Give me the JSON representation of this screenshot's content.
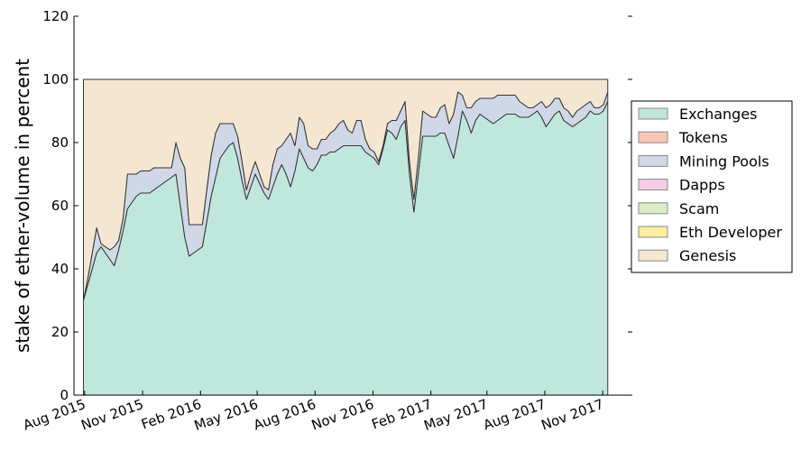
{
  "chart_data": {
    "type": "area",
    "stacked": true,
    "title": "",
    "xlabel": "",
    "ylabel": "stake of ether-volume in percent",
    "ylim": [
      0,
      120
    ],
    "yticks": [
      0,
      20,
      40,
      60,
      80,
      100,
      120
    ],
    "xlim": [
      "2015-07-15",
      "2017-12-18"
    ],
    "xticks": [
      "2015-08-01",
      "2015-11-01",
      "2016-02-01",
      "2016-05-01",
      "2016-08-01",
      "2016-11-01",
      "2017-02-01",
      "2017-05-01",
      "2017-08-01",
      "2017-11-01"
    ],
    "xtick_labels": [
      "Aug 2015",
      "Nov 2015",
      "Feb 2016",
      "May 2016",
      "Aug 2016",
      "Nov 2016",
      "Feb 2017",
      "May 2017",
      "Aug 2017",
      "Nov 2017"
    ],
    "grid": false,
    "legend_position": "right",
    "x": [
      "2015-07-30",
      "2015-08-06",
      "2015-08-13",
      "2015-08-20",
      "2015-08-27",
      "2015-09-03",
      "2015-09-10",
      "2015-09-17",
      "2015-09-24",
      "2015-10-01",
      "2015-10-08",
      "2015-10-15",
      "2015-10-22",
      "2015-10-29",
      "2015-11-05",
      "2015-11-12",
      "2015-11-19",
      "2015-11-26",
      "2015-12-03",
      "2015-12-10",
      "2015-12-17",
      "2015-12-24",
      "2015-12-31",
      "2016-01-07",
      "2016-01-14",
      "2016-01-21",
      "2016-01-28",
      "2016-02-04",
      "2016-02-11",
      "2016-02-18",
      "2016-02-25",
      "2016-03-03",
      "2016-03-10",
      "2016-03-17",
      "2016-03-24",
      "2016-03-31",
      "2016-04-07",
      "2016-04-14",
      "2016-04-21",
      "2016-04-28",
      "2016-05-05",
      "2016-05-12",
      "2016-05-19",
      "2016-05-26",
      "2016-06-02",
      "2016-06-09",
      "2016-06-16",
      "2016-06-23",
      "2016-06-30",
      "2016-07-07",
      "2016-07-14",
      "2016-07-21",
      "2016-07-28",
      "2016-08-04",
      "2016-08-11",
      "2016-08-18",
      "2016-08-25",
      "2016-09-01",
      "2016-09-08",
      "2016-09-15",
      "2016-09-22",
      "2016-09-29",
      "2016-10-06",
      "2016-10-13",
      "2016-10-20",
      "2016-10-27",
      "2016-11-03",
      "2016-11-10",
      "2016-11-17",
      "2016-11-24",
      "2016-12-01",
      "2016-12-08",
      "2016-12-15",
      "2016-12-22",
      "2016-12-29",
      "2017-01-05",
      "2017-01-12",
      "2017-01-19",
      "2017-01-26",
      "2017-02-02",
      "2017-02-09",
      "2017-02-16",
      "2017-02-23",
      "2017-03-02",
      "2017-03-09",
      "2017-03-16",
      "2017-03-23",
      "2017-03-30",
      "2017-04-06",
      "2017-04-13",
      "2017-04-20",
      "2017-04-27",
      "2017-05-04",
      "2017-05-11",
      "2017-05-18",
      "2017-05-25",
      "2017-06-01",
      "2017-06-08",
      "2017-06-15",
      "2017-06-22",
      "2017-06-29",
      "2017-07-06",
      "2017-07-13",
      "2017-07-20",
      "2017-07-27",
      "2017-08-03",
      "2017-08-10",
      "2017-08-17",
      "2017-08-24",
      "2017-08-31",
      "2017-09-07",
      "2017-09-14",
      "2017-09-21",
      "2017-09-28",
      "2017-10-05",
      "2017-10-12",
      "2017-10-19",
      "2017-10-26",
      "2017-11-02",
      "2017-11-09"
    ],
    "series": [
      {
        "name": "Exchanges",
        "color": "#c0e7dc",
        "values": [
          30,
          35,
          40,
          45,
          47,
          45,
          43,
          41,
          46,
          52,
          59,
          61,
          63,
          64,
          64,
          64,
          65,
          66,
          67,
          68,
          69,
          70,
          60,
          50,
          44,
          45,
          46,
          47,
          55,
          63,
          69,
          75,
          77,
          79,
          80,
          75,
          68,
          62,
          66,
          70,
          67,
          64,
          62,
          66,
          70,
          73,
          70,
          66,
          71,
          78,
          75,
          72,
          71,
          73,
          76,
          76,
          77,
          77,
          78,
          79,
          79,
          79,
          79,
          79,
          77,
          76,
          75,
          73,
          78,
          84,
          83,
          81,
          85,
          87,
          70,
          58,
          70,
          82,
          82,
          82,
          82,
          83,
          83,
          79,
          75,
          82,
          90,
          87,
          83,
          87,
          89,
          88,
          87,
          86,
          87,
          88,
          89,
          89,
          89,
          88,
          88,
          88,
          89,
          90,
          88,
          85,
          87,
          89,
          90,
          87,
          86,
          85,
          86,
          87,
          88,
          90,
          89,
          89,
          90,
          93
        ]
      },
      {
        "name": "Tokens",
        "color": "#f7c8b4",
        "values": [
          0,
          0,
          0,
          0,
          0,
          0,
          0,
          0,
          0,
          0,
          0,
          0,
          0,
          0,
          0,
          0,
          0,
          0,
          0,
          0,
          0,
          0,
          0,
          0,
          0,
          0,
          0,
          0,
          0,
          0,
          0,
          0,
          0,
          0,
          0,
          0,
          0,
          0,
          0,
          0,
          0,
          0,
          0,
          0,
          0,
          0,
          0,
          0,
          0,
          0,
          0,
          0,
          0,
          0,
          0,
          0,
          0,
          0,
          0,
          0,
          0,
          0,
          0,
          0,
          0,
          0,
          0,
          0,
          0,
          0,
          0,
          0,
          0,
          0,
          0,
          0,
          0,
          0,
          0,
          0,
          0,
          0,
          0,
          0,
          0,
          0,
          0,
          0,
          0,
          0,
          0,
          0,
          0,
          0,
          0,
          0,
          0,
          0,
          0,
          0,
          0,
          0,
          0,
          0,
          0,
          0,
          0,
          0,
          0,
          0,
          0,
          0,
          0,
          0,
          0,
          0,
          0,
          0,
          0,
          0
        ]
      },
      {
        "name": "Mining Pools",
        "color": "#d0d8e8",
        "values": [
          0,
          2,
          5,
          8,
          1,
          2,
          3,
          6,
          3,
          4,
          11,
          9,
          7,
          7,
          7,
          7,
          7,
          6,
          5,
          4,
          3,
          10,
          15,
          22,
          10,
          9,
          8,
          7,
          10,
          13,
          14,
          11,
          9,
          7,
          6,
          7,
          6,
          3,
          4,
          4,
          3,
          2,
          3,
          7,
          8,
          6,
          11,
          17,
          8,
          10,
          11,
          7,
          7,
          5,
          5,
          5,
          6,
          7,
          8,
          8,
          5,
          4,
          8,
          8,
          4,
          2,
          2,
          1,
          1,
          2,
          4,
          6,
          5,
          6,
          4,
          4,
          5,
          8,
          7,
          6,
          6,
          8,
          9,
          7,
          14,
          14,
          5,
          4,
          8,
          6,
          5,
          6,
          7,
          8,
          8,
          7,
          6,
          6,
          6,
          5,
          4,
          3,
          2,
          2,
          5,
          6,
          5,
          5,
          4,
          4,
          4,
          3,
          4,
          4,
          4,
          3,
          2,
          2,
          2,
          3
        ]
      },
      {
        "name": "Dapps",
        "color": "#f4cbe4",
        "values": [
          0,
          0,
          0,
          0,
          0,
          0,
          0,
          0,
          0,
          0,
          0,
          0,
          0,
          0,
          0,
          0,
          0,
          0,
          0,
          0,
          0,
          0,
          0,
          0,
          0,
          0,
          0,
          0,
          0,
          0,
          0,
          0,
          0,
          0,
          0,
          0,
          0,
          0,
          0,
          0,
          0,
          0,
          0,
          0,
          0,
          0,
          0,
          0,
          0,
          0,
          0,
          0,
          0,
          0,
          0,
          0,
          0,
          0,
          0,
          0,
          0,
          0,
          0,
          0,
          0,
          0,
          0,
          0,
          0,
          0,
          0,
          0,
          0,
          0,
          0,
          0,
          0,
          0,
          0,
          0,
          0,
          0,
          0,
          0,
          0,
          0,
          0,
          0,
          0,
          0,
          0,
          0,
          0,
          0,
          0,
          0,
          0,
          0,
          0,
          0,
          0,
          0,
          0,
          0,
          0,
          0,
          0,
          0,
          0,
          0,
          0,
          0,
          0,
          0,
          0,
          0,
          0,
          0,
          0,
          0
        ]
      },
      {
        "name": "Scam",
        "color": "#d9eec6",
        "values": [
          0,
          0,
          0,
          0,
          0,
          0,
          0,
          0,
          0,
          0,
          0,
          0,
          0,
          0,
          0,
          0,
          0,
          0,
          0,
          0,
          0,
          0,
          0,
          0,
          0,
          0,
          0,
          0,
          0,
          0,
          0,
          0,
          0,
          0,
          0,
          0,
          0,
          0,
          0,
          0,
          0,
          0,
          0,
          0,
          0,
          0,
          0,
          0,
          0,
          0,
          0,
          0,
          0,
          0,
          0,
          0,
          0,
          0,
          0,
          0,
          0,
          0,
          0,
          0,
          0,
          0,
          0,
          0,
          0,
          0,
          0,
          0,
          0,
          0,
          0,
          0,
          0,
          0,
          0,
          0,
          0,
          0,
          0,
          0,
          0,
          0,
          0,
          0,
          0,
          0,
          0,
          0,
          0,
          0,
          0,
          0,
          0,
          0,
          0,
          0,
          0,
          0,
          0,
          0,
          0,
          0,
          0,
          0,
          0,
          0,
          0,
          0,
          0,
          0,
          0,
          0,
          0,
          0,
          0,
          0
        ]
      },
      {
        "name": "Eth Developer",
        "color": "#fdee9f",
        "values": [
          0,
          0,
          0,
          0,
          0,
          0,
          0,
          0,
          0,
          0,
          0,
          0,
          0,
          0,
          0,
          0,
          0,
          0,
          0,
          0,
          0,
          0,
          0,
          0,
          0,
          0,
          0,
          0,
          0,
          0,
          0,
          0,
          0,
          0,
          0,
          0,
          0,
          0,
          0,
          0,
          0,
          0,
          0,
          0,
          0,
          0,
          0,
          0,
          0,
          0,
          0,
          0,
          0,
          0,
          0,
          0,
          0,
          0,
          0,
          0,
          0,
          0,
          0,
          0,
          0,
          0,
          0,
          0,
          0,
          0,
          0,
          0,
          0,
          0,
          0,
          0,
          0,
          0,
          0,
          0,
          0,
          0,
          0,
          0,
          0,
          0,
          0,
          0,
          0,
          0,
          0,
          0,
          0,
          0,
          0,
          0,
          0,
          0,
          0,
          0,
          0,
          0,
          0,
          0,
          0,
          0,
          0,
          0,
          0,
          0,
          0,
          0,
          0,
          0,
          0,
          0,
          0,
          0,
          0,
          0
        ]
      },
      {
        "name": "Genesis",
        "color": "#f5e6d1",
        "values": [
          70,
          63,
          55,
          47,
          52,
          53,
          54,
          53,
          51,
          44,
          30,
          30,
          30,
          29,
          29,
          29,
          28,
          28,
          28,
          28,
          28,
          20,
          25,
          28,
          46,
          46,
          46,
          46,
          35,
          24,
          17,
          14,
          14,
          14,
          14,
          18,
          26,
          35,
          30,
          26,
          30,
          34,
          35,
          27,
          22,
          21,
          19,
          17,
          21,
          12,
          14,
          21,
          22,
          22,
          19,
          19,
          17,
          16,
          14,
          13,
          16,
          17,
          13,
          13,
          19,
          22,
          23,
          26,
          21,
          14,
          13,
          13,
          10,
          7,
          26,
          38,
          25,
          10,
          11,
          12,
          12,
          9,
          8,
          14,
          11,
          4,
          5,
          9,
          9,
          7,
          6,
          6,
          6,
          6,
          5,
          5,
          5,
          5,
          5,
          7,
          8,
          9,
          9,
          8,
          7,
          9,
          8,
          6,
          6,
          9,
          10,
          12,
          10,
          9,
          8,
          7,
          9,
          9,
          8,
          4
        ]
      }
    ]
  }
}
